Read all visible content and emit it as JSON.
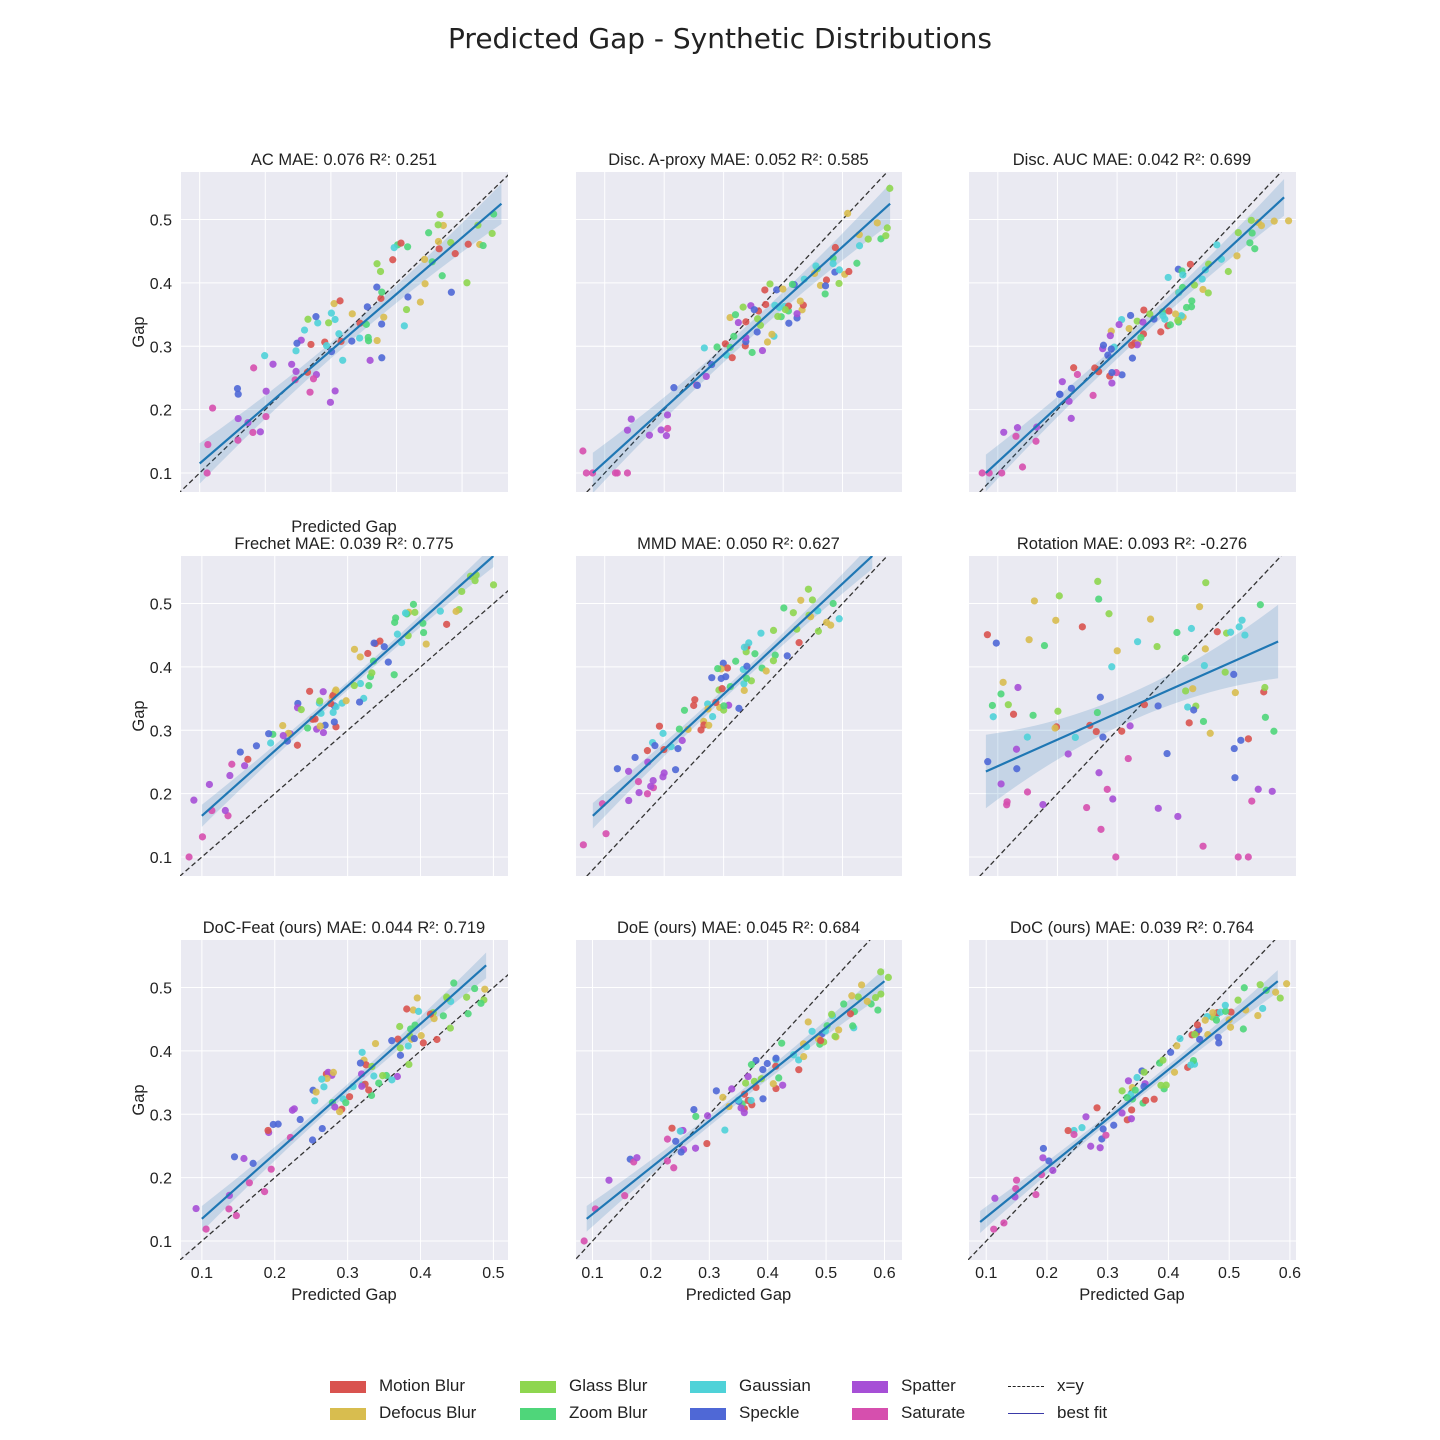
{
  "title": "Predicted Gap - Synthetic Distributions",
  "colors": {
    "Motion Blur": "#d9534f",
    "Defocus Blur": "#d8bd4f",
    "Glass Blur": "#8ed64f",
    "Zoom Blur": "#4fd67a",
    "Gaussian": "#4fd2d8",
    "Speckle": "#4f68d6",
    "Spatter": "#a64fd6",
    "Saturate": "#d64fae",
    "fit": "#1f77b4",
    "band": "rgba(31,119,180,0.18)",
    "panel_bg": "#eaeaf2"
  },
  "legend": {
    "items": [
      {
        "label": "Motion Blur",
        "kind": "patch"
      },
      {
        "label": "Defocus Blur",
        "kind": "patch"
      },
      {
        "label": "Glass Blur",
        "kind": "patch"
      },
      {
        "label": "Zoom Blur",
        "kind": "patch"
      },
      {
        "label": "Gaussian",
        "kind": "patch"
      },
      {
        "label": "Speckle",
        "kind": "patch"
      },
      {
        "label": "Spatter",
        "kind": "patch"
      },
      {
        "label": "Saturate",
        "kind": "patch"
      },
      {
        "label": "x=y",
        "kind": "dashed"
      },
      {
        "label": "best fit",
        "kind": "solid"
      }
    ]
  },
  "chart_data": [
    {
      "type": "scatter",
      "name": "AC",
      "title_rest": "MAE: 0.076  R²: 0.251",
      "mae": 0.076,
      "r2": 0.251,
      "xlim": [
        0.07,
        0.57
      ],
      "ylim": [
        0.07,
        0.575
      ],
      "ylabel": "Gap",
      "xlabel": "Predicted Gap",
      "xticks": [],
      "yticks": [
        "0.1",
        "0.2",
        "0.3",
        "0.4",
        "0.5"
      ],
      "fit": {
        "x0": 0.1,
        "y0": 0.115,
        "x1": 0.56,
        "y1": 0.525,
        "band": 0.022
      },
      "seed": 11
    },
    {
      "type": "scatter",
      "name": "Disc. A-proxy",
      "title_rest": "MAE: 0.052  R²: 0.585",
      "mae": 0.052,
      "r2": 0.585,
      "xlim": [
        0.05,
        0.6
      ],
      "ylim": [
        0.07,
        0.575
      ],
      "ylabel": "",
      "xlabel": "",
      "xticks": [],
      "yticks": [],
      "fit": {
        "x0": 0.08,
        "y0": 0.1,
        "x1": 0.58,
        "y1": 0.525,
        "band": 0.022
      },
      "seed": 23
    },
    {
      "type": "scatter",
      "name": "Disc. AUC",
      "title_rest": "MAE: 0.042  R²: 0.699",
      "mae": 0.042,
      "r2": 0.699,
      "xlim": [
        0.05,
        0.6
      ],
      "ylim": [
        0.07,
        0.575
      ],
      "ylabel": "",
      "xlabel": "",
      "xticks": [],
      "yticks": [],
      "fit": {
        "x0": 0.08,
        "y0": 0.1,
        "x1": 0.58,
        "y1": 0.535,
        "band": 0.02
      },
      "seed": 37
    },
    {
      "type": "scatter",
      "name": "Frechet",
      "title_rest": "MAE: 0.039  R²: 0.775",
      "mae": 0.039,
      "r2": 0.775,
      "xlim": [
        0.07,
        0.52
      ],
      "ylim": [
        0.07,
        0.575
      ],
      "ylabel": "Gap",
      "xlabel": "",
      "xticks": [],
      "yticks": [
        "0.1",
        "0.2",
        "0.3",
        "0.4",
        "0.5"
      ],
      "fit": {
        "x0": 0.1,
        "y0": 0.165,
        "x1": 0.5,
        "y1": 0.575,
        "band": 0.012
      },
      "seed": 41
    },
    {
      "type": "scatter",
      "name": "MMD",
      "title_rest": "MAE: 0.050  R²: 0.627",
      "mae": 0.05,
      "r2": 0.627,
      "xlim": [
        0.05,
        0.6
      ],
      "ylim": [
        0.07,
        0.575
      ],
      "ylabel": "",
      "xlabel": "",
      "xticks": [],
      "yticks": [],
      "fit": {
        "x0": 0.08,
        "y0": 0.165,
        "x1": 0.55,
        "y1": 0.575,
        "band": 0.014
      },
      "seed": 53
    },
    {
      "type": "scatter",
      "name": "Rotation",
      "title_rest": "MAE: 0.093  R²: -0.276",
      "mae": 0.093,
      "r2": -0.276,
      "xlim": [
        0.05,
        0.6
      ],
      "ylim": [
        0.07,
        0.575
      ],
      "ylabel": "",
      "xlabel": "",
      "xticks": [],
      "yticks": [],
      "fit": {
        "x0": 0.08,
        "y0": 0.235,
        "x1": 0.57,
        "y1": 0.44,
        "band": 0.04
      },
      "seed": 67
    },
    {
      "type": "scatter",
      "name": "DoC-Feat (ours)",
      "title_rest": "MAE: 0.044  R²: 0.719",
      "mae": 0.044,
      "r2": 0.719,
      "xlim": [
        0.07,
        0.52
      ],
      "ylim": [
        0.07,
        0.575
      ],
      "ylabel": "Gap",
      "xlabel": "Predicted Gap",
      "xticks": [
        "0.1",
        "0.2",
        "0.3",
        "0.4",
        "0.5"
      ],
      "yticks": [
        "0.1",
        "0.2",
        "0.3",
        "0.4",
        "0.5"
      ],
      "fit": {
        "x0": 0.1,
        "y0": 0.135,
        "x1": 0.49,
        "y1": 0.535,
        "band": 0.014
      },
      "seed": 71
    },
    {
      "type": "scatter",
      "name": "DoE (ours)",
      "title_rest": "MAE: 0.045  R²: 0.684",
      "mae": 0.045,
      "r2": 0.684,
      "xlim": [
        0.07,
        0.63
      ],
      "ylim": [
        0.07,
        0.575
      ],
      "ylabel": "",
      "xlabel": "Predicted Gap",
      "xticks": [
        "0.1",
        "0.2",
        "0.3",
        "0.4",
        "0.5",
        "0.6"
      ],
      "yticks": [],
      "fit": {
        "x0": 0.09,
        "y0": 0.135,
        "x1": 0.6,
        "y1": 0.51,
        "band": 0.014
      },
      "seed": 83
    },
    {
      "type": "scatter",
      "name": "DoC (ours)",
      "title_rest": "MAE: 0.039  R²: 0.764",
      "mae": 0.039,
      "r2": 0.764,
      "xlim": [
        0.07,
        0.61
      ],
      "ylim": [
        0.07,
        0.575
      ],
      "ylabel": "",
      "xlabel": "Predicted Gap",
      "xticks": [
        "0.1",
        "0.2",
        "0.3",
        "0.4",
        "0.5",
        "0.6"
      ],
      "yticks": [],
      "fit": {
        "x0": 0.09,
        "y0": 0.13,
        "x1": 0.58,
        "y1": 0.51,
        "band": 0.012
      },
      "seed": 97
    }
  ]
}
